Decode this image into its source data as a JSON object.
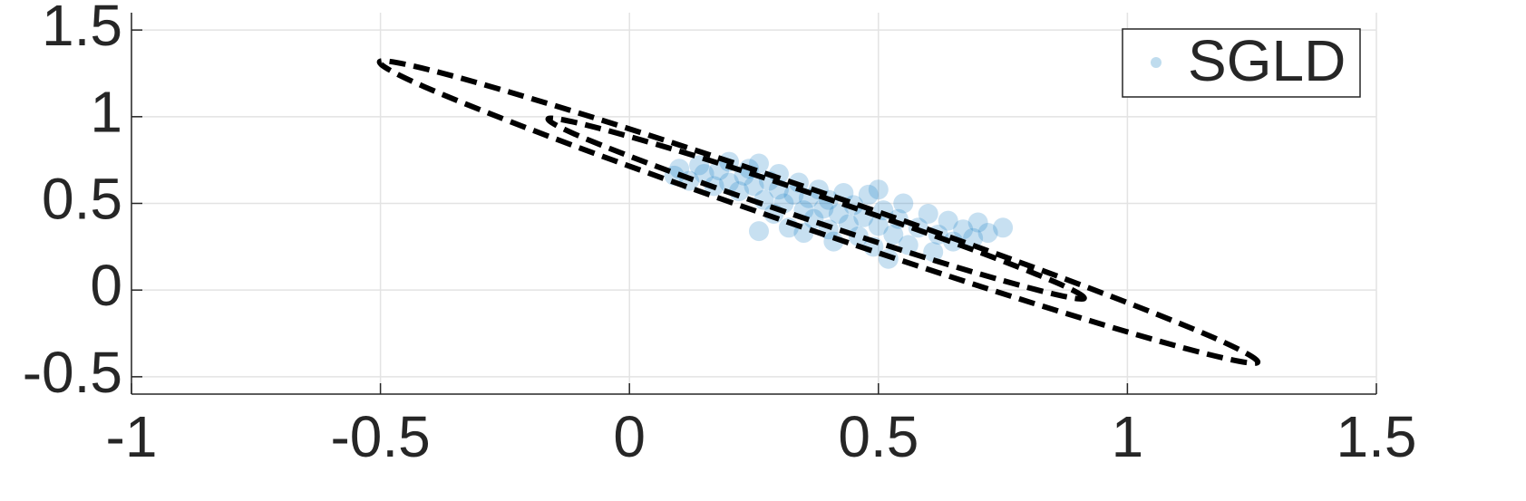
{
  "chart_data": {
    "type": "scatter",
    "xlim": [
      -1,
      1.5
    ],
    "xticks": [
      -1,
      -0.5,
      0,
      0.5,
      1,
      1.5
    ],
    "ylim": [
      -0.6,
      1.6
    ],
    "yticks": [
      -0.5,
      0,
      0.5,
      1,
      1.5
    ],
    "grid": true,
    "legend": "upper right",
    "series": [
      {
        "name": "SGLD",
        "color": "#0072bd",
        "x": [
          0.09,
          0.1,
          0.12,
          0.14,
          0.15,
          0.17,
          0.18,
          0.2,
          0.2,
          0.22,
          0.23,
          0.24,
          0.25,
          0.26,
          0.26,
          0.27,
          0.28,
          0.29,
          0.3,
          0.3,
          0.31,
          0.32,
          0.33,
          0.34,
          0.35,
          0.35,
          0.36,
          0.37,
          0.38,
          0.39,
          0.4,
          0.4,
          0.41,
          0.42,
          0.43,
          0.44,
          0.45,
          0.46,
          0.47,
          0.48,
          0.49,
          0.5,
          0.5,
          0.51,
          0.52,
          0.53,
          0.54,
          0.55,
          0.56,
          0.58,
          0.6,
          0.61,
          0.62,
          0.64,
          0.65,
          0.67,
          0.69,
          0.7,
          0.72,
          0.75
        ],
        "y": [
          0.66,
          0.7,
          0.63,
          0.72,
          0.67,
          0.6,
          0.69,
          0.74,
          0.62,
          0.57,
          0.66,
          0.7,
          0.6,
          0.73,
          0.34,
          0.52,
          0.63,
          0.44,
          0.58,
          0.67,
          0.5,
          0.36,
          0.55,
          0.62,
          0.46,
          0.33,
          0.53,
          0.41,
          0.58,
          0.47,
          0.35,
          0.52,
          0.28,
          0.44,
          0.56,
          0.38,
          0.49,
          0.31,
          0.42,
          0.55,
          0.25,
          0.37,
          0.58,
          0.46,
          0.18,
          0.32,
          0.41,
          0.5,
          0.26,
          0.36,
          0.44,
          0.22,
          0.32,
          0.4,
          0.28,
          0.35,
          0.3,
          0.39,
          0.33,
          0.36
        ]
      }
    ],
    "contours": [
      {
        "color": "#000000",
        "x": [
          1.26,
          1.172,
          0.872,
          0.44,
          -0.008,
          -0.352,
          -0.5,
          -0.412,
          -0.112,
          0.32,
          0.768,
          1.112
        ],
        "y": [
          -0.42,
          -0.273,
          0.067,
          0.51,
          0.937,
          1.233,
          1.32,
          1.173,
          0.833,
          0.39,
          -0.037,
          -0.333
        ]
      },
      {
        "color": "#000000",
        "x": [
          0.912,
          0.86,
          0.678,
          0.415,
          0.142,
          -0.07,
          -0.162,
          -0.11,
          0.072,
          0.335,
          0.608,
          0.82
        ],
        "y": [
          -0.05,
          0.04,
          0.245,
          0.51,
          0.765,
          0.94,
          0.99,
          0.9,
          0.695,
          0.43,
          0.175,
          0.0
        ]
      }
    ]
  }
}
